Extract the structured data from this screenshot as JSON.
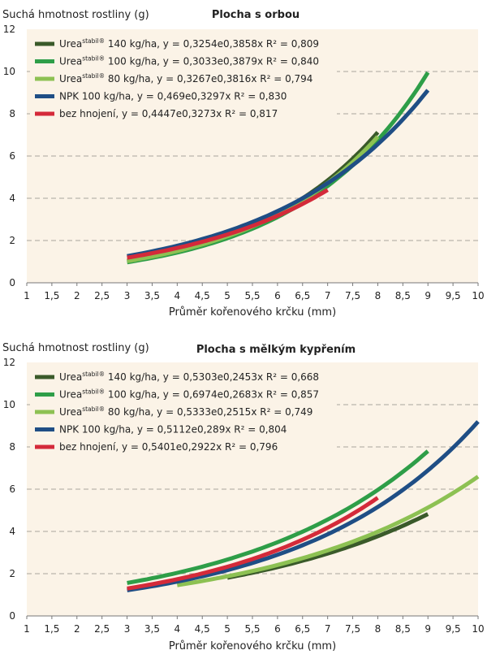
{
  "chart_data": [
    {
      "type": "line",
      "title": "Plocha s orbou",
      "ylabel": "Suchá hmotnost rostliny (g)",
      "xlabel": "Průměr kořenového krčku (mm)",
      "xlim": [
        1,
        10
      ],
      "ylim": [
        0,
        12
      ],
      "x_ticks": [
        "1",
        "1,5",
        "2",
        "2,5",
        "3",
        "3,5",
        "4",
        "4,5",
        "5",
        "5,5",
        "6",
        "6,5",
        "7",
        "7,5",
        "8",
        "8,5",
        "9",
        "9,5",
        "10"
      ],
      "y_ticks": [
        "0",
        "2",
        "4",
        "6",
        "8",
        "10",
        "12"
      ],
      "series": [
        {
          "name": "Urea",
          "sup": "stabil®",
          "suffix": " 140 kg/ha, y = 0,3254e0,3858x R² = 0,809",
          "a": 0.3254,
          "b": 0.3858,
          "x_range": [
            3,
            8
          ],
          "color": "#3a5a2a"
        },
        {
          "name": "Urea",
          "sup": "stabil®",
          "suffix": " 100 kg/ha, y = 0,3033e0,3879x R² = 0,840",
          "a": 0.3033,
          "b": 0.3879,
          "x_range": [
            3,
            9
          ],
          "color": "#2e9e48"
        },
        {
          "name": "Urea",
          "sup": "stabil®",
          "suffix": " 80 kg/ha, y = 0,3267e0,3816x R² = 0,794",
          "a": 0.3267,
          "b": 0.3816,
          "x_range": [
            3,
            8
          ],
          "color": "#8dc153"
        },
        {
          "name": "NPK 100 kg/ha, y = 0,469e0,3297x R² = 0,830",
          "sup": "",
          "suffix": "",
          "a": 0.469,
          "b": 0.3297,
          "x_range": [
            3,
            9
          ],
          "color": "#1f4e85"
        },
        {
          "name": "bez hnojení, y = 0,4447e0,3273x R² = 0,817",
          "sup": "",
          "suffix": "",
          "a": 0.4447,
          "b": 0.3273,
          "x_range": [
            3,
            7
          ],
          "color": "#d42a3a"
        }
      ]
    },
    {
      "type": "line",
      "title": "Plocha s mělkým kypřením",
      "ylabel": "Suchá hmotnost rostliny (g)",
      "xlabel": "Průměr kořenového krčku (mm)",
      "xlim": [
        1,
        10
      ],
      "ylim": [
        0,
        12
      ],
      "x_ticks": [
        "1",
        "1,5",
        "2",
        "2,5",
        "3",
        "3,5",
        "4",
        "4,5",
        "5",
        "5,5",
        "6",
        "6,5",
        "7",
        "7,5",
        "8",
        "8,5",
        "9",
        "9,5",
        "10"
      ],
      "y_ticks": [
        "0",
        "2",
        "4",
        "6",
        "8",
        "10",
        "12"
      ],
      "series": [
        {
          "name": "Urea",
          "sup": "stabil®",
          "suffix": " 140 kg/ha, y = 0,5303e0,2453x R² = 0,668",
          "a": 0.5303,
          "b": 0.2453,
          "x_range": [
            5,
            9
          ],
          "color": "#3a5a2a"
        },
        {
          "name": "Urea",
          "sup": "stabil®",
          "suffix": " 100 kg/ha, y = 0,6974e0,2683x R² = 0,857",
          "a": 0.6974,
          "b": 0.2683,
          "x_range": [
            3,
            9
          ],
          "color": "#2e9e48"
        },
        {
          "name": "Urea",
          "sup": "stabil®",
          "suffix": " 80 kg/ha, y = 0,5333e0,2515x R² = 0,749",
          "a": 0.5333,
          "b": 0.2515,
          "x_range": [
            4,
            10
          ],
          "color": "#8dc153"
        },
        {
          "name": "NPK 100 kg/ha, y = 0,5112e0,289x R² = 0,804",
          "sup": "",
          "suffix": "",
          "a": 0.5112,
          "b": 0.289,
          "x_range": [
            3,
            10
          ],
          "color": "#1f4e85"
        },
        {
          "name": "bez hnojení, y = 0,5401e0,2922x R² = 0,796",
          "sup": "",
          "suffix": "",
          "a": 0.5401,
          "b": 0.2922,
          "x_range": [
            3,
            8
          ],
          "color": "#d42a3a"
        }
      ]
    }
  ]
}
